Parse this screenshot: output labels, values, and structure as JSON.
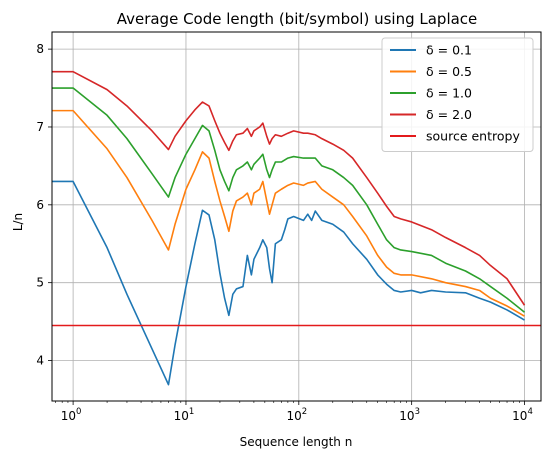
{
  "chart_data": {
    "type": "line",
    "title": "Average Code length (bit/symbol) using Laplace",
    "xlabel": "Sequence length n",
    "ylabel": "L/n",
    "xscale": "log",
    "xlim": [
      0.65,
      14000
    ],
    "ylim": [
      3.48,
      8.22
    ],
    "grid": true,
    "legend_position": "top-right",
    "x_ticks": [
      {
        "value": 1,
        "base": "10",
        "exp": "0"
      },
      {
        "value": 10,
        "base": "10",
        "exp": "1"
      },
      {
        "value": 100,
        "base": "10",
        "exp": "2"
      },
      {
        "value": 1000,
        "base": "10",
        "exp": "3"
      },
      {
        "value": 10000,
        "base": "10",
        "exp": "4"
      }
    ],
    "y_ticks": [
      {
        "value": 4,
        "label": "4"
      },
      {
        "value": 5,
        "label": "5"
      },
      {
        "value": 6,
        "label": "6"
      },
      {
        "value": 7,
        "label": "7"
      },
      {
        "value": 8,
        "label": "8"
      }
    ],
    "series": [
      {
        "name": "δ = 0.1",
        "color": "#1f77b4",
        "points": [
          [
            0.65,
            6.3
          ],
          [
            1,
            6.3
          ],
          [
            2,
            5.45
          ],
          [
            3,
            4.85
          ],
          [
            5,
            4.15
          ],
          [
            7,
            3.69
          ],
          [
            8,
            4.2
          ],
          [
            10,
            4.95
          ],
          [
            12,
            5.5
          ],
          [
            14,
            5.93
          ],
          [
            16,
            5.87
          ],
          [
            18,
            5.55
          ],
          [
            20,
            5.12
          ],
          [
            22,
            4.8
          ],
          [
            24,
            4.58
          ],
          [
            26,
            4.85
          ],
          [
            28,
            4.92
          ],
          [
            32,
            4.95
          ],
          [
            35,
            5.35
          ],
          [
            38,
            5.1
          ],
          [
            40,
            5.3
          ],
          [
            45,
            5.45
          ],
          [
            48,
            5.55
          ],
          [
            52,
            5.45
          ],
          [
            55,
            5.18
          ],
          [
            58,
            5.0
          ],
          [
            62,
            5.5
          ],
          [
            70,
            5.55
          ],
          [
            75,
            5.68
          ],
          [
            80,
            5.82
          ],
          [
            90,
            5.85
          ],
          [
            110,
            5.8
          ],
          [
            120,
            5.88
          ],
          [
            130,
            5.8
          ],
          [
            140,
            5.92
          ],
          [
            160,
            5.8
          ],
          [
            200,
            5.75
          ],
          [
            250,
            5.65
          ],
          [
            300,
            5.5
          ],
          [
            400,
            5.3
          ],
          [
            500,
            5.1
          ],
          [
            600,
            4.98
          ],
          [
            700,
            4.9
          ],
          [
            800,
            4.88
          ],
          [
            1000,
            4.9
          ],
          [
            1200,
            4.87
          ],
          [
            1500,
            4.9
          ],
          [
            2000,
            4.88
          ],
          [
            3000,
            4.87
          ],
          [
            4000,
            4.8
          ],
          [
            5000,
            4.75
          ],
          [
            7000,
            4.65
          ],
          [
            10000,
            4.52
          ]
        ]
      },
      {
        "name": "δ = 0.5",
        "color": "#ff7f0e",
        "points": [
          [
            0.65,
            7.21
          ],
          [
            1,
            7.21
          ],
          [
            2,
            6.72
          ],
          [
            3,
            6.35
          ],
          [
            5,
            5.8
          ],
          [
            7,
            5.42
          ],
          [
            8,
            5.75
          ],
          [
            10,
            6.2
          ],
          [
            12,
            6.45
          ],
          [
            14,
            6.68
          ],
          [
            16,
            6.6
          ],
          [
            18,
            6.3
          ],
          [
            20,
            6.05
          ],
          [
            22,
            5.85
          ],
          [
            24,
            5.66
          ],
          [
            26,
            5.92
          ],
          [
            28,
            6.05
          ],
          [
            32,
            6.1
          ],
          [
            35,
            6.15
          ],
          [
            38,
            6.0
          ],
          [
            40,
            6.15
          ],
          [
            45,
            6.2
          ],
          [
            48,
            6.3
          ],
          [
            52,
            6.05
          ],
          [
            55,
            5.88
          ],
          [
            58,
            6.0
          ],
          [
            62,
            6.15
          ],
          [
            70,
            6.2
          ],
          [
            80,
            6.25
          ],
          [
            90,
            6.28
          ],
          [
            110,
            6.25
          ],
          [
            120,
            6.28
          ],
          [
            140,
            6.3
          ],
          [
            160,
            6.2
          ],
          [
            200,
            6.1
          ],
          [
            250,
            6.0
          ],
          [
            300,
            5.85
          ],
          [
            400,
            5.6
          ],
          [
            500,
            5.35
          ],
          [
            600,
            5.2
          ],
          [
            700,
            5.12
          ],
          [
            800,
            5.1
          ],
          [
            1000,
            5.1
          ],
          [
            1500,
            5.05
          ],
          [
            2000,
            5.0
          ],
          [
            3000,
            4.95
          ],
          [
            4000,
            4.9
          ],
          [
            5000,
            4.8
          ],
          [
            7000,
            4.7
          ],
          [
            10000,
            4.57
          ]
        ]
      },
      {
        "name": "δ = 1.0",
        "color": "#2ca02c",
        "points": [
          [
            0.65,
            7.5
          ],
          [
            1,
            7.5
          ],
          [
            2,
            7.15
          ],
          [
            3,
            6.85
          ],
          [
            5,
            6.4
          ],
          [
            7,
            6.1
          ],
          [
            8,
            6.35
          ],
          [
            10,
            6.65
          ],
          [
            12,
            6.85
          ],
          [
            14,
            7.02
          ],
          [
            16,
            6.95
          ],
          [
            18,
            6.7
          ],
          [
            20,
            6.45
          ],
          [
            22,
            6.3
          ],
          [
            24,
            6.18
          ],
          [
            26,
            6.35
          ],
          [
            28,
            6.45
          ],
          [
            32,
            6.5
          ],
          [
            35,
            6.55
          ],
          [
            38,
            6.45
          ],
          [
            40,
            6.52
          ],
          [
            45,
            6.6
          ],
          [
            48,
            6.65
          ],
          [
            52,
            6.45
          ],
          [
            55,
            6.35
          ],
          [
            58,
            6.45
          ],
          [
            62,
            6.55
          ],
          [
            70,
            6.55
          ],
          [
            80,
            6.6
          ],
          [
            90,
            6.62
          ],
          [
            110,
            6.6
          ],
          [
            120,
            6.6
          ],
          [
            140,
            6.6
          ],
          [
            160,
            6.5
          ],
          [
            200,
            6.45
          ],
          [
            250,
            6.35
          ],
          [
            300,
            6.25
          ],
          [
            400,
            6.0
          ],
          [
            500,
            5.75
          ],
          [
            600,
            5.55
          ],
          [
            700,
            5.45
          ],
          [
            800,
            5.42
          ],
          [
            1000,
            5.4
          ],
          [
            1500,
            5.35
          ],
          [
            2000,
            5.25
          ],
          [
            3000,
            5.15
          ],
          [
            4000,
            5.05
          ],
          [
            5000,
            4.95
          ],
          [
            7000,
            4.8
          ],
          [
            10000,
            4.62
          ]
        ]
      },
      {
        "name": "δ = 2.0",
        "color": "#d62728",
        "points": [
          [
            0.65,
            7.71
          ],
          [
            1,
            7.71
          ],
          [
            2,
            7.48
          ],
          [
            3,
            7.27
          ],
          [
            5,
            6.95
          ],
          [
            7,
            6.71
          ],
          [
            8,
            6.88
          ],
          [
            10,
            7.08
          ],
          [
            12,
            7.22
          ],
          [
            14,
            7.32
          ],
          [
            16,
            7.27
          ],
          [
            18,
            7.08
          ],
          [
            20,
            6.92
          ],
          [
            22,
            6.8
          ],
          [
            24,
            6.7
          ],
          [
            26,
            6.82
          ],
          [
            28,
            6.9
          ],
          [
            32,
            6.92
          ],
          [
            35,
            6.98
          ],
          [
            38,
            6.88
          ],
          [
            40,
            6.95
          ],
          [
            45,
            7.0
          ],
          [
            48,
            7.05
          ],
          [
            52,
            6.88
          ],
          [
            55,
            6.78
          ],
          [
            58,
            6.85
          ],
          [
            62,
            6.9
          ],
          [
            70,
            6.88
          ],
          [
            80,
            6.92
          ],
          [
            90,
            6.95
          ],
          [
            110,
            6.92
          ],
          [
            120,
            6.92
          ],
          [
            140,
            6.9
          ],
          [
            160,
            6.85
          ],
          [
            200,
            6.78
          ],
          [
            250,
            6.7
          ],
          [
            300,
            6.6
          ],
          [
            400,
            6.35
          ],
          [
            500,
            6.15
          ],
          [
            600,
            5.98
          ],
          [
            700,
            5.85
          ],
          [
            800,
            5.82
          ],
          [
            1000,
            5.78
          ],
          [
            1500,
            5.68
          ],
          [
            2000,
            5.58
          ],
          [
            3000,
            5.45
          ],
          [
            4000,
            5.35
          ],
          [
            5000,
            5.22
          ],
          [
            7000,
            5.05
          ],
          [
            10000,
            4.71
          ]
        ]
      },
      {
        "name": "source entropy",
        "color": "#e31a1c",
        "points": [
          [
            0.65,
            4.45
          ],
          [
            14000,
            4.45
          ]
        ]
      }
    ]
  }
}
